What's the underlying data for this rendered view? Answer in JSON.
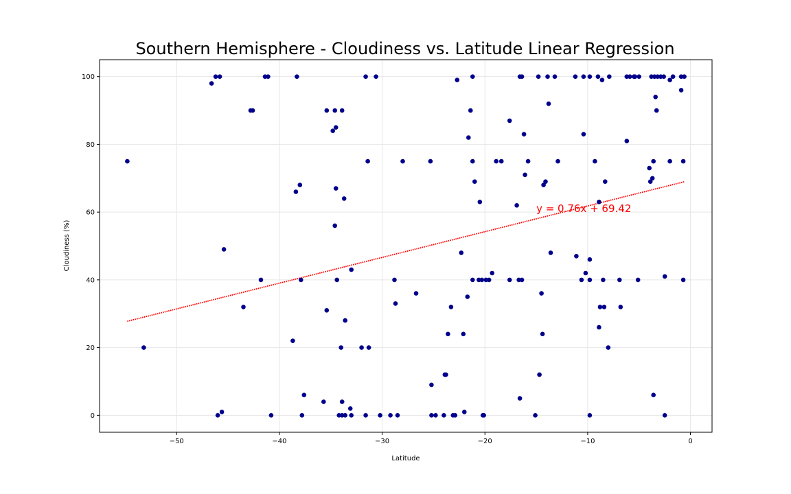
{
  "chart_data": {
    "type": "scatter",
    "title": "Southern Hemisphere - Cloudiness vs. Latitude Linear Regression",
    "xlabel": "Latitude",
    "ylabel": "Cloudiness (%)",
    "xlim": [
      -57.5,
      2.1
    ],
    "ylim": [
      -5,
      105
    ],
    "xticks": [
      -50,
      -40,
      -30,
      -20,
      -10,
      0
    ],
    "yticks": [
      0,
      20,
      40,
      60,
      80,
      100
    ],
    "grid": true,
    "colors": {
      "points": "#00008b",
      "regression": "#ff0000",
      "grid": "#e6e6e6"
    },
    "regression": {
      "slope": 0.76,
      "intercept": 69.42,
      "x_range": [
        -54.8,
        -0.6
      ]
    },
    "annotation": {
      "text": "y = 0.76x + 69.42",
      "x": -15,
      "y": 60,
      "color": "#ff0000"
    },
    "points": [
      [
        -54.8,
        75
      ],
      [
        -53.2,
        20
      ],
      [
        -46.6,
        98
      ],
      [
        -46.2,
        100
      ],
      [
        -45.8,
        100
      ],
      [
        -46.0,
        0
      ],
      [
        -45.6,
        1
      ],
      [
        -45.4,
        49
      ],
      [
        -42.8,
        90
      ],
      [
        -42.6,
        90
      ],
      [
        -41.8,
        40
      ],
      [
        -41.4,
        100
      ],
      [
        -41.1,
        100
      ],
      [
        -40.8,
        0
      ],
      [
        -43.5,
        32
      ],
      [
        -38.7,
        22
      ],
      [
        -38.4,
        66
      ],
      [
        -38.3,
        100
      ],
      [
        -38.0,
        68
      ],
      [
        -37.9,
        40
      ],
      [
        -37.6,
        6
      ],
      [
        -37.8,
        0
      ],
      [
        -35.7,
        4
      ],
      [
        -35.4,
        31
      ],
      [
        -35.4,
        90
      ],
      [
        -34.8,
        84
      ],
      [
        -34.6,
        90
      ],
      [
        -34.6,
        56
      ],
      [
        -34.5,
        67
      ],
      [
        -34.5,
        85
      ],
      [
        -34.4,
        40
      ],
      [
        -34.2,
        0
      ],
      [
        -34.0,
        20
      ],
      [
        -33.9,
        4
      ],
      [
        -33.9,
        90
      ],
      [
        -33.7,
        64
      ],
      [
        -33.6,
        28
      ],
      [
        -33.6,
        0
      ],
      [
        -33.9,
        0
      ],
      [
        -33.1,
        2
      ],
      [
        -33.0,
        43
      ],
      [
        -33.0,
        0
      ],
      [
        -32.0,
        20
      ],
      [
        -31.6,
        100
      ],
      [
        -31.6,
        0
      ],
      [
        -31.4,
        75
      ],
      [
        -31.3,
        20
      ],
      [
        -30.6,
        100
      ],
      [
        -30.2,
        0
      ],
      [
        -29.2,
        0
      ],
      [
        -28.8,
        40
      ],
      [
        -28.7,
        33
      ],
      [
        -28.5,
        0
      ],
      [
        -28.0,
        75
      ],
      [
        -26.7,
        36
      ],
      [
        -25.3,
        75
      ],
      [
        -25.2,
        9
      ],
      [
        -25.2,
        0
      ],
      [
        -24.8,
        0
      ],
      [
        -24.0,
        0
      ],
      [
        -23.9,
        12
      ],
      [
        -23.8,
        12
      ],
      [
        -23.6,
        24
      ],
      [
        -23.3,
        32
      ],
      [
        -23.1,
        0
      ],
      [
        -22.9,
        0
      ],
      [
        -22.7,
        99
      ],
      [
        -22.3,
        48
      ],
      [
        -22.1,
        24
      ],
      [
        -22.0,
        1
      ],
      [
        -21.7,
        35
      ],
      [
        -21.6,
        82
      ],
      [
        -21.4,
        90
      ],
      [
        -21.2,
        100
      ],
      [
        -21.2,
        75
      ],
      [
        -21.2,
        40
      ],
      [
        -21.0,
        69
      ],
      [
        -20.6,
        40
      ],
      [
        -20.5,
        63
      ],
      [
        -20.3,
        40
      ],
      [
        -20.2,
        0
      ],
      [
        -20.1,
        0
      ],
      [
        -19.9,
        40
      ],
      [
        -19.6,
        40
      ],
      [
        -19.3,
        42
      ],
      [
        -18.9,
        75
      ],
      [
        -18.4,
        75
      ],
      [
        -17.6,
        87
      ],
      [
        -17.6,
        40
      ],
      [
        -16.9,
        62
      ],
      [
        -16.7,
        40
      ],
      [
        -16.6,
        5
      ],
      [
        -16.6,
        100
      ],
      [
        -16.4,
        100
      ],
      [
        -16.4,
        40
      ],
      [
        -16.2,
        83
      ],
      [
        -16.1,
        71
      ],
      [
        -15.8,
        75
      ],
      [
        -15.1,
        0
      ],
      [
        -14.8,
        100
      ],
      [
        -14.7,
        12
      ],
      [
        -14.5,
        36
      ],
      [
        -14.4,
        24
      ],
      [
        -14.3,
        68
      ],
      [
        -14.1,
        69
      ],
      [
        -13.9,
        100
      ],
      [
        -13.8,
        92
      ],
      [
        -13.6,
        48
      ],
      [
        -13.2,
        100
      ],
      [
        -12.9,
        75
      ],
      [
        -11.2,
        100
      ],
      [
        -11.1,
        47
      ],
      [
        -10.6,
        40
      ],
      [
        -10.4,
        100
      ],
      [
        -10.4,
        83
      ],
      [
        -10.2,
        42
      ],
      [
        -9.8,
        40
      ],
      [
        -9.8,
        46
      ],
      [
        -9.8,
        100
      ],
      [
        -9.8,
        0
      ],
      [
        -9.3,
        75
      ],
      [
        -9.0,
        100
      ],
      [
        -8.9,
        26
      ],
      [
        -8.9,
        63
      ],
      [
        -8.8,
        32
      ],
      [
        -8.6,
        99
      ],
      [
        -8.5,
        40
      ],
      [
        -8.4,
        32
      ],
      [
        -8.3,
        69
      ],
      [
        -8.0,
        20
      ],
      [
        -7.9,
        100
      ],
      [
        -6.9,
        40
      ],
      [
        -6.8,
        32
      ],
      [
        -6.2,
        100
      ],
      [
        -6.2,
        81
      ],
      [
        -5.9,
        100
      ],
      [
        -5.5,
        100
      ],
      [
        -5.4,
        100
      ],
      [
        -5.1,
        40
      ],
      [
        -5.0,
        100
      ],
      [
        -4.0,
        73
      ],
      [
        -3.9,
        69
      ],
      [
        -3.8,
        100
      ],
      [
        -3.7,
        70
      ],
      [
        -3.6,
        75
      ],
      [
        -3.6,
        6
      ],
      [
        -3.5,
        100
      ],
      [
        -3.4,
        94
      ],
      [
        -3.3,
        90
      ],
      [
        -3.2,
        100
      ],
      [
        -2.9,
        100
      ],
      [
        -2.6,
        100
      ],
      [
        -2.5,
        41
      ],
      [
        -2.5,
        0
      ],
      [
        -2.0,
        99
      ],
      [
        -2.0,
        75
      ],
      [
        -1.7,
        100
      ],
      [
        -0.9,
        96
      ],
      [
        -0.9,
        100
      ],
      [
        -0.7,
        40
      ],
      [
        -0.7,
        75
      ],
      [
        -0.6,
        100
      ]
    ]
  }
}
